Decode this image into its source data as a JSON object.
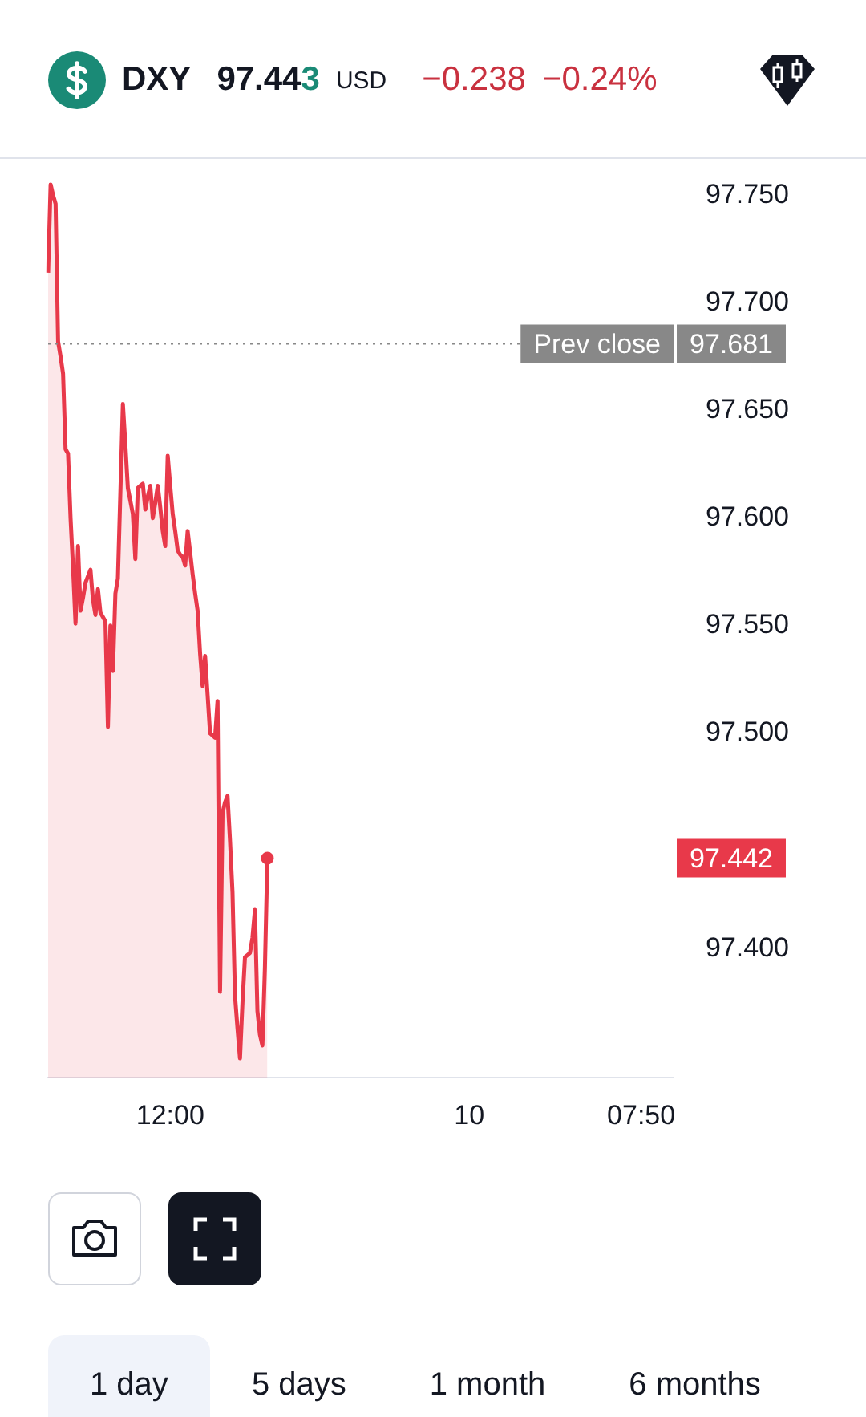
{
  "chart_data": {
    "type": "area",
    "title": "DXY",
    "annotations": [
      "97.443",
      "USD",
      "−0.238",
      "−0.24%",
      "1 day",
      "5 days",
      "1 month",
      "6 months",
      "97.442"
    ],
    "categories": [
      null,
      null,
      null,
      null,
      null,
      null,
      null,
      null,
      null,
      null,
      null,
      null,
      null,
      null,
      null,
      null,
      null,
      null,
      null,
      null,
      null,
      null,
      null,
      null,
      null,
      null,
      null,
      null,
      null,
      null,
      null,
      null,
      null,
      null,
      null,
      null,
      null,
      null,
      null,
      null,
      null,
      null,
      null,
      null,
      null,
      null,
      null,
      null,
      null,
      "12:00",
      null,
      null,
      null,
      null,
      null,
      null,
      null,
      null,
      null,
      null,
      null,
      null,
      null,
      null,
      null,
      null,
      null,
      null,
      null,
      null,
      null,
      null,
      null,
      null,
      null,
      null,
      null,
      null,
      null,
      null,
      null,
      null,
      null,
      null,
      null,
      null,
      null,
      null,
      null,
      null,
      null,
      null,
      null,
      null,
      null,
      null,
      null,
      null,
      null,
      null,
      null,
      null,
      null,
      null,
      null,
      null,
      null,
      null,
      null,
      null,
      null,
      null,
      null,
      null,
      null,
      null,
      null,
      null,
      null,
      null,
      null,
      null,
      null,
      null,
      null,
      null,
      null,
      null,
      null,
      null,
      null,
      null,
      null,
      null,
      null,
      null,
      null,
      null,
      null,
      null,
      null,
      null,
      null,
      null,
      null,
      null,
      null,
      null,
      null,
      null,
      null,
      null,
      null,
      null,
      null,
      null,
      null,
      null,
      null,
      null,
      null,
      null,
      null,
      null,
      null,
      null,
      null,
      null,
      null,
      "10",
      null,
      null,
      null,
      null,
      null,
      null,
      null,
      null,
      null,
      null,
      null,
      null,
      null,
      null,
      null,
      null,
      null,
      null,
      null,
      null,
      null,
      null,
      null,
      null,
      null,
      null,
      null,
      null,
      null,
      null,
      null,
      null,
      null,
      null,
      null,
      null,
      null,
      null,
      null,
      null,
      null,
      null,
      null,
      null,
      null,
      null,
      null,
      null,
      null,
      null,
      null,
      null,
      null,
      null,
      null,
      null,
      null,
      null,
      null,
      null,
      null,
      null,
      null,
      null,
      null,
      null,
      null,
      null,
      "07:50",
      null,
      null,
      null,
      null,
      null,
      null,
      null,
      null,
      null,
      null,
      null,
      null,
      null
    ],
    "series": [
      {
        "color": "#e8394a",
        "values": [
          97.714,
          97.755,
          97.75,
          97.746,
          97.682,
          97.675,
          97.667,
          97.632,
          97.63,
          97.6,
          97.577,
          97.551,
          97.587,
          97.557,
          97.563,
          97.57,
          97.573,
          97.576,
          97.562,
          97.555,
          97.567,
          97.556,
          97.554,
          97.552,
          97.503,
          97.55,
          97.529,
          97.565,
          97.572,
          97.612,
          97.653,
          97.634,
          97.614,
          97.608,
          97.602,
          97.581,
          97.614,
          97.615,
          97.616,
          97.604,
          97.61,
          97.615,
          97.6,
          97.607,
          97.615,
          97.605,
          97.594,
          97.587,
          97.629,
          97.615,
          97.602,
          97.594,
          97.585,
          97.583,
          97.582,
          97.578,
          97.594,
          97.584,
          97.574,
          97.565,
          97.557,
          97.537,
          97.522,
          97.536,
          97.518,
          97.5,
          97.499,
          97.498,
          97.515,
          97.38,
          97.463,
          97.468,
          97.471,
          97.45,
          97.426,
          97.378,
          97.363,
          97.349,
          97.375,
          97.396,
          97.397,
          97.398,
          97.405,
          97.418,
          97.371,
          97.36,
          97.355,
          97.391,
          97.442,
          null,
          null,
          null,
          null,
          null,
          null,
          null,
          null,
          null,
          null,
          null,
          null,
          null,
          null,
          null,
          null,
          null,
          null,
          null,
          null,
          null,
          null,
          null,
          null,
          null,
          null,
          null,
          null,
          null,
          null,
          null,
          null,
          null,
          null,
          null,
          null,
          null,
          null,
          null,
          null,
          null,
          null,
          null,
          null,
          null,
          null,
          null,
          null,
          null,
          null,
          null,
          null,
          null,
          null,
          null,
          null,
          null,
          null,
          null,
          null,
          null,
          null,
          null,
          null,
          null,
          null,
          null,
          null,
          null,
          null,
          null,
          null,
          null,
          null,
          null,
          null,
          null,
          null,
          null,
          null,
          null,
          null,
          null,
          null,
          null,
          null,
          null,
          null,
          null,
          null,
          null,
          null,
          null,
          null,
          null,
          null,
          null,
          null,
          null,
          null,
          null,
          null,
          null,
          null,
          null,
          null,
          null,
          null,
          null,
          null,
          null,
          null,
          null,
          null,
          null,
          null,
          null,
          null,
          null,
          null,
          null,
          null,
          null,
          null,
          null,
          null,
          null,
          null,
          null,
          null,
          null,
          null,
          null,
          null,
          null,
          null,
          null,
          null,
          null,
          null,
          null,
          null,
          null,
          null,
          null,
          null,
          null,
          null,
          null,
          null,
          null,
          null,
          null,
          null,
          null,
          null,
          null,
          null,
          null,
          null,
          null,
          null,
          null
        ]
      }
    ],
    "ylim": [
      97.34,
      97.766
    ],
    "yticks": [
      {
        "value": 97.4,
        "label": "97.400"
      },
      {
        "value": 97.5,
        "label": "97.500"
      },
      {
        "value": 97.55,
        "label": "97.550"
      },
      {
        "value": 97.6,
        "label": "97.600"
      },
      {
        "value": 97.65,
        "label": "97.650"
      },
      {
        "value": 97.7,
        "label": "97.700"
      },
      {
        "value": 97.75,
        "label": "97.750"
      }
    ],
    "ref_lines": [
      {
        "axis": "y",
        "value": 97.681,
        "label": "Prev close 97.681",
        "color": "#888888",
        "line_style": "dotted"
      }
    ],
    "grid": false,
    "legend": false,
    "marker": "none",
    "line_style": "solid"
  }
}
